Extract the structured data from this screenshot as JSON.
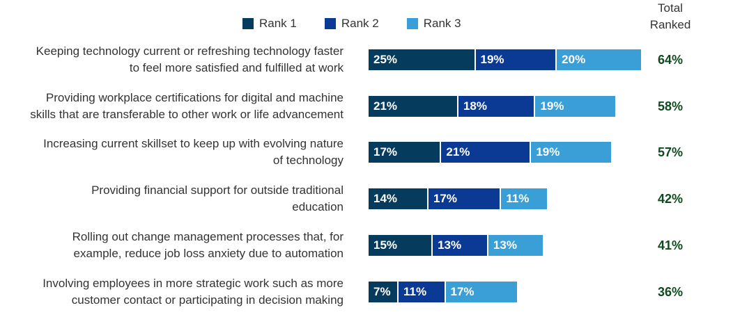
{
  "legend": {
    "rank1": "Rank 1",
    "rank2": "Rank 2",
    "rank3": "Rank 3"
  },
  "total_header": {
    "line1": "Total",
    "line2": "Ranked"
  },
  "colors": {
    "rank1": "#053c5e",
    "rank2": "#0b3a94",
    "rank3": "#3a9fd6",
    "total_text": "#0f4a1e"
  },
  "chart_data": {
    "type": "bar",
    "orientation": "horizontal",
    "stacked": true,
    "categories": [
      [
        "Keeping technology current or refreshing technology faster",
        "to feel more satisfied and fulfilled at work"
      ],
      [
        "Providing workplace certifications for digital and machine",
        "skills that are transferable to other work or life advancement"
      ],
      [
        "Increasing current skillset to keep up with evolving nature",
        "of technology"
      ],
      [
        "Providing financial support for outside traditional",
        "education"
      ],
      [
        "Rolling out change management processes that, for",
        "example, reduce job loss anxiety due to automation"
      ],
      [
        "Involving employees in more strategic work such as more",
        "customer contact or participating in decision making"
      ]
    ],
    "series": [
      {
        "name": "Rank 1",
        "values": [
          25,
          21,
          17,
          14,
          15,
          7
        ]
      },
      {
        "name": "Rank 2",
        "values": [
          19,
          18,
          21,
          17,
          13,
          11
        ]
      },
      {
        "name": "Rank 3",
        "values": [
          20,
          19,
          19,
          11,
          13,
          17
        ]
      }
    ],
    "totals": [
      64,
      58,
      57,
      42,
      41,
      36
    ],
    "value_suffix": "%",
    "total_label": "Total Ranked",
    "legend_position": "top"
  }
}
